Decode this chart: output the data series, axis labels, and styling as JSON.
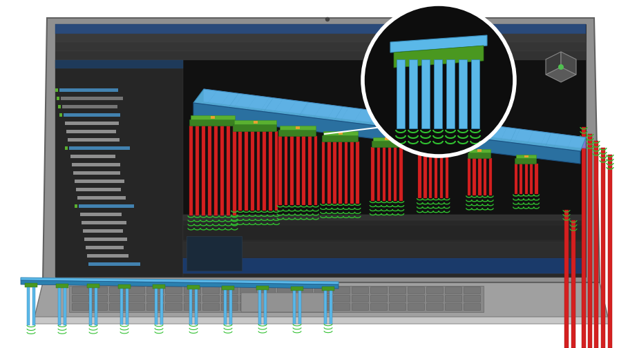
{
  "bg_color": "#ffffff",
  "pile_red": "#d42020",
  "pile_blue": "#5ab8e8",
  "beam_blue": "#5ab8e8",
  "beam_blue_dark": "#2a80b0",
  "beam_purple": "#8070c0",
  "cap_green": "#5ab030",
  "cap_green_dark": "#3a8020",
  "cap_orange": "#e8a030",
  "soil_green": "#30c030",
  "laptop_silver": "#b8b8b8",
  "laptop_dark": "#888888",
  "laptop_darker": "#606060",
  "screen_bg": "#1a1a1a",
  "screen_dark": "#111111",
  "ui_panel": "#2a2a2a",
  "zoom_white": "#ffffff",
  "figsize": [
    8.96,
    5.04
  ],
  "dpi": 100
}
